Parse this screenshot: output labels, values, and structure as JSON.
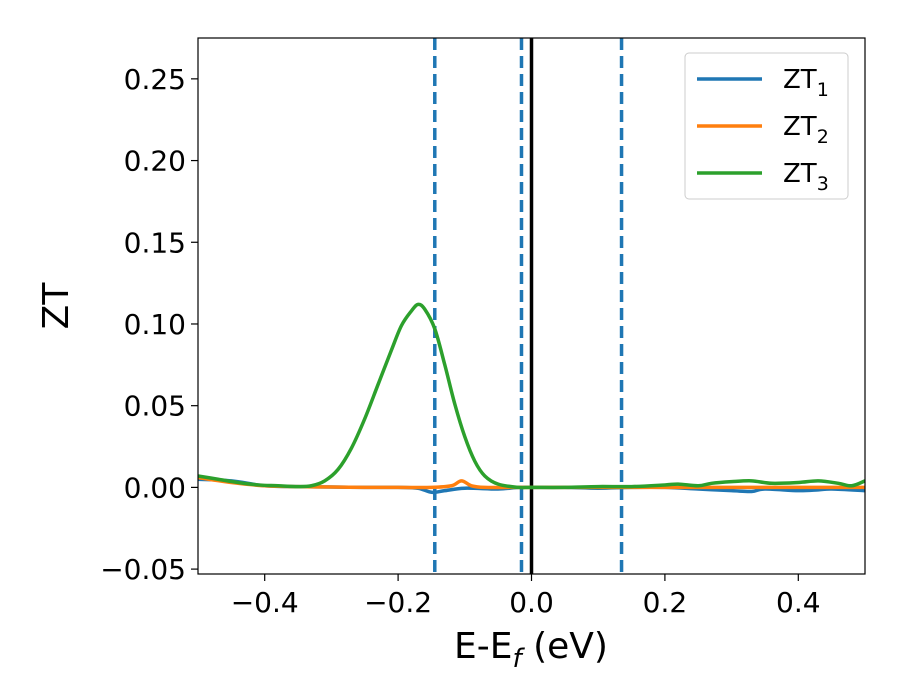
{
  "chart_data": {
    "type": "line",
    "xlabel": "E-E",
    "xlabel_sub": "f",
    "xlabel_unit": " (eV)",
    "ylabel": "ZT",
    "xlim": [
      -0.5,
      0.5
    ],
    "ylim": [
      -0.053,
      0.275
    ],
    "x_ticks": [
      -0.4,
      -0.2,
      0.0,
      0.2,
      0.4
    ],
    "x_tick_labels": [
      "−0.4",
      "−0.2",
      "0.0",
      "0.2",
      "0.4"
    ],
    "y_ticks": [
      -0.05,
      0.0,
      0.05,
      0.1,
      0.15,
      0.2,
      0.25
    ],
    "y_tick_labels": [
      "−0.05",
      "0.00",
      "0.05",
      "0.10",
      "0.15",
      "0.20",
      "0.25"
    ],
    "grid": false,
    "legend_position": "top-right",
    "reference_lines": {
      "solid": {
        "x": 0.0,
        "color": "#000000"
      },
      "dashed": {
        "x": [
          -0.145,
          -0.015,
          0.135
        ],
        "color": "#1f77b4"
      }
    },
    "series": [
      {
        "name": "ZT",
        "name_sub": "1",
        "color": "#1f77b4",
        "points": [
          [
            -0.5,
            0.005
          ],
          [
            -0.45,
            0.004
          ],
          [
            -0.4,
            0.001
          ],
          [
            -0.35,
            0.0005
          ],
          [
            -0.3,
            0.0002
          ],
          [
            -0.25,
            0.0
          ],
          [
            -0.2,
            0.0
          ],
          [
            -0.17,
            -0.0005
          ],
          [
            -0.15,
            -0.003
          ],
          [
            -0.13,
            -0.002
          ],
          [
            -0.1,
            -0.0005
          ],
          [
            -0.05,
            -0.001
          ],
          [
            -0.02,
            0.0
          ],
          [
            0.0,
            0.0
          ],
          [
            0.05,
            0.0
          ],
          [
            0.1,
            -0.0005
          ],
          [
            0.15,
            0.0
          ],
          [
            0.2,
            0.0
          ],
          [
            0.25,
            -0.001
          ],
          [
            0.3,
            -0.002
          ],
          [
            0.33,
            -0.0025
          ],
          [
            0.35,
            -0.001
          ],
          [
            0.4,
            -0.002
          ],
          [
            0.43,
            -0.0015
          ],
          [
            0.45,
            -0.001
          ],
          [
            0.5,
            -0.002
          ]
        ]
      },
      {
        "name": "ZT",
        "name_sub": "2",
        "color": "#ff7f0e",
        "points": [
          [
            -0.5,
            0.006
          ],
          [
            -0.45,
            0.003
          ],
          [
            -0.4,
            0.001
          ],
          [
            -0.35,
            0.0005
          ],
          [
            -0.3,
            0.0002
          ],
          [
            -0.25,
            0.0
          ],
          [
            -0.2,
            0.0
          ],
          [
            -0.15,
            0.0
          ],
          [
            -0.12,
            0.001
          ],
          [
            -0.105,
            0.004
          ],
          [
            -0.09,
            0.001
          ],
          [
            -0.07,
            0.0
          ],
          [
            -0.03,
            0.0
          ],
          [
            0.0,
            0.0
          ],
          [
            0.1,
            0.0
          ],
          [
            0.2,
            0.0
          ],
          [
            0.3,
            0.0
          ],
          [
            0.4,
            0.0
          ],
          [
            0.5,
            0.0
          ]
        ]
      },
      {
        "name": "ZT",
        "name_sub": "3",
        "color": "#2ca02c",
        "points": [
          [
            -0.5,
            0.007
          ],
          [
            -0.47,
            0.005
          ],
          [
            -0.44,
            0.003
          ],
          [
            -0.41,
            0.0015
          ],
          [
            -0.38,
            0.001
          ],
          [
            -0.35,
            0.0005
          ],
          [
            -0.33,
            0.001
          ],
          [
            -0.31,
            0.004
          ],
          [
            -0.29,
            0.011
          ],
          [
            -0.27,
            0.024
          ],
          [
            -0.25,
            0.042
          ],
          [
            -0.23,
            0.063
          ],
          [
            -0.21,
            0.084
          ],
          [
            -0.195,
            0.099
          ],
          [
            -0.18,
            0.108
          ],
          [
            -0.17,
            0.112
          ],
          [
            -0.16,
            0.109
          ],
          [
            -0.145,
            0.097
          ],
          [
            -0.13,
            0.075
          ],
          [
            -0.115,
            0.051
          ],
          [
            -0.1,
            0.031
          ],
          [
            -0.085,
            0.016
          ],
          [
            -0.07,
            0.007
          ],
          [
            -0.05,
            0.002
          ],
          [
            -0.02,
            0.0
          ],
          [
            0.0,
            0.0
          ],
          [
            0.05,
            0.0
          ],
          [
            0.1,
            0.0005
          ],
          [
            0.15,
            0.0005
          ],
          [
            0.2,
            0.0015
          ],
          [
            0.22,
            0.002
          ],
          [
            0.25,
            0.001
          ],
          [
            0.27,
            0.0025
          ],
          [
            0.3,
            0.0035
          ],
          [
            0.33,
            0.004
          ],
          [
            0.36,
            0.0025
          ],
          [
            0.4,
            0.003
          ],
          [
            0.43,
            0.004
          ],
          [
            0.46,
            0.0025
          ],
          [
            0.48,
            0.001
          ],
          [
            0.5,
            0.004
          ]
        ]
      }
    ]
  }
}
